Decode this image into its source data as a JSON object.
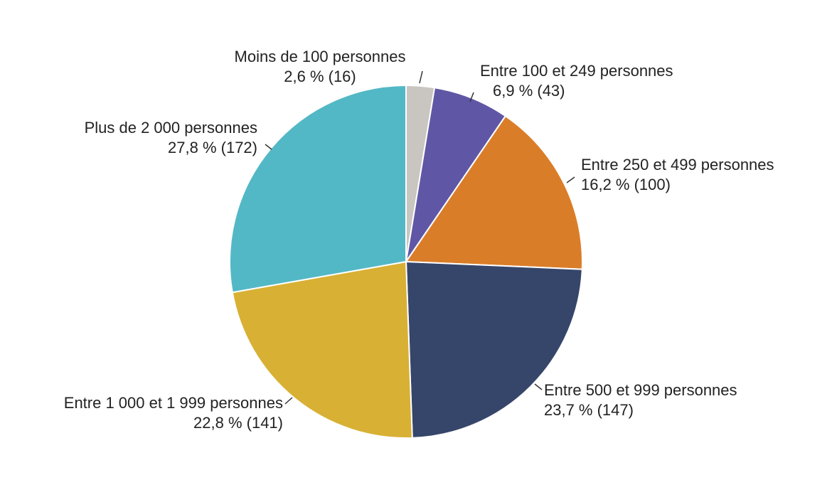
{
  "chart_data": {
    "type": "pie",
    "title": "",
    "start_angle": "top",
    "direction": "clockwise",
    "slices": [
      {
        "label": "Moins de 100 personnes",
        "value_label": "2,6 % (16)",
        "percent": 2.6,
        "count": 16,
        "color": "#c9c5c1"
      },
      {
        "label": "Entre 100 et 249 personnes",
        "value_label": "6,9 % (43)",
        "percent": 6.9,
        "count": 43,
        "color": "#5f57a5"
      },
      {
        "label": "Entre 250 et 499 personnes",
        "value_label": "16,2 % (100)",
        "percent": 16.2,
        "count": 100,
        "color": "#da7d29"
      },
      {
        "label": "Entre 500 et 999 personnes",
        "value_label": "23,7 % (147)",
        "percent": 23.7,
        "count": 147,
        "color": "#36466a"
      },
      {
        "label": "Entre 1 000 et 1 999 personnes",
        "value_label": "22,8 % (141)",
        "percent": 22.8,
        "count": 141,
        "color": "#d8b034"
      },
      {
        "label": "Plus de 2 000 personnes",
        "value_label": "27,8 % (172)",
        "percent": 27.8,
        "count": 172,
        "color": "#53b8c5"
      }
    ]
  }
}
